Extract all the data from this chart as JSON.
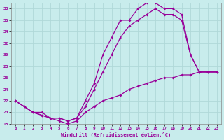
{
  "xlabel": "Windchill (Refroidissement éolien,°C)",
  "bg_color": "#c8ecec",
  "grid_color": "#b0d8d8",
  "line_color": "#990099",
  "xlim": [
    -0.5,
    23.5
  ],
  "ylim": [
    18,
    39
  ],
  "xticks": [
    0,
    1,
    2,
    3,
    4,
    5,
    6,
    7,
    8,
    9,
    10,
    11,
    12,
    13,
    14,
    15,
    16,
    17,
    18,
    19,
    20,
    21,
    22,
    23
  ],
  "yticks": [
    18,
    20,
    22,
    24,
    26,
    28,
    30,
    32,
    34,
    36,
    38
  ],
  "line1_x": [
    0,
    1,
    2,
    3,
    4,
    5,
    6,
    7,
    8,
    9,
    10,
    11,
    12,
    13,
    14,
    15,
    16,
    17,
    18,
    19,
    20,
    21,
    22,
    23
  ],
  "line1_y": [
    22,
    21,
    20,
    20,
    19,
    19,
    18.5,
    19,
    22,
    25,
    30,
    33,
    36,
    36,
    38,
    39,
    39,
    38,
    38,
    37,
    30,
    27,
    27,
    27
  ],
  "line2_x": [
    0,
    2,
    3,
    4,
    5,
    6,
    7,
    8,
    9,
    10,
    11,
    12,
    13,
    14,
    15,
    16,
    17,
    18,
    19,
    20,
    21,
    22,
    23
  ],
  "line2_y": [
    22,
    20,
    19.5,
    19,
    19,
    18.5,
    19,
    21,
    24,
    27,
    30,
    33,
    35,
    36,
    37,
    38,
    37,
    37,
    36,
    30,
    27,
    27,
    27
  ],
  "line3_x": [
    0,
    1,
    2,
    3,
    4,
    5,
    6,
    7,
    8,
    9,
    10,
    11,
    12,
    13,
    14,
    15,
    16,
    17,
    18,
    19,
    20,
    21,
    22,
    23
  ],
  "line3_y": [
    22,
    21,
    20,
    19.5,
    19,
    18.5,
    18,
    18.5,
    20,
    21,
    22,
    22.5,
    23,
    24,
    24.5,
    25,
    25.5,
    26,
    26,
    26.5,
    26.5,
    27,
    27,
    27
  ]
}
